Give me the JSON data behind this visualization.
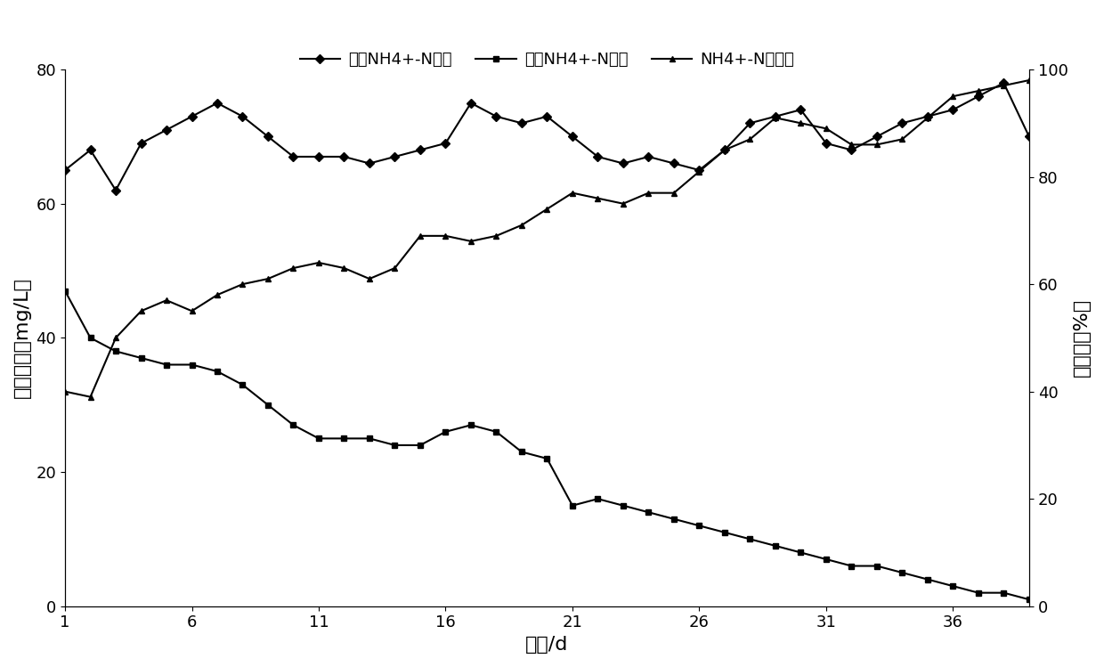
{
  "title": "",
  "xlabel": "时间/d",
  "ylabel_left": "氨氮浓度（mg/L）",
  "ylabel_right": "去除率（%）",
  "legend1": "进水NH4+-N浓度",
  "legend2": "出水NH4+-N浓度",
  "legend3": "NH4+-N去除率",
  "xlim": [
    1,
    39
  ],
  "ylim_left": [
    0,
    80
  ],
  "ylim_right": [
    0,
    100
  ],
  "xticks": [
    1,
    6,
    11,
    16,
    21,
    26,
    31,
    36
  ],
  "yticks_left": [
    0,
    20,
    40,
    60,
    80
  ],
  "yticks_right": [
    0,
    20,
    40,
    60,
    80,
    100
  ],
  "series1_x": [
    1,
    2,
    3,
    4,
    5,
    6,
    7,
    8,
    9,
    10,
    11,
    12,
    13,
    14,
    15,
    16,
    17,
    18,
    19,
    20,
    21,
    22,
    23,
    24,
    25,
    26,
    27,
    28,
    29,
    30,
    31,
    32,
    33,
    34,
    35,
    36,
    37,
    38,
    39
  ],
  "series1_y": [
    65,
    68,
    62,
    69,
    71,
    73,
    75,
    73,
    70,
    67,
    67,
    67,
    66,
    67,
    68,
    69,
    75,
    73,
    72,
    73,
    70,
    67,
    66,
    67,
    66,
    65,
    68,
    72,
    73,
    74,
    69,
    68,
    70,
    72,
    73,
    74,
    76,
    78,
    70
  ],
  "series2_x": [
    1,
    2,
    3,
    4,
    5,
    6,
    7,
    8,
    9,
    10,
    11,
    12,
    13,
    14,
    15,
    16,
    17,
    18,
    19,
    20,
    21,
    22,
    23,
    24,
    25,
    26,
    27,
    28,
    29,
    30,
    31,
    32,
    33,
    34,
    35,
    36,
    37,
    38,
    39
  ],
  "series2_y": [
    47,
    40,
    38,
    37,
    36,
    36,
    35,
    33,
    30,
    27,
    25,
    25,
    25,
    24,
    24,
    26,
    27,
    26,
    23,
    22,
    15,
    16,
    15,
    14,
    13,
    12,
    11,
    10,
    9,
    8,
    7,
    6,
    6,
    5,
    4,
    3,
    2,
    2,
    1
  ],
  "series3_x": [
    1,
    2,
    3,
    4,
    5,
    6,
    7,
    8,
    9,
    10,
    11,
    12,
    13,
    14,
    15,
    16,
    17,
    18,
    19,
    20,
    21,
    22,
    23,
    24,
    25,
    26,
    27,
    28,
    29,
    30,
    31,
    32,
    33,
    34,
    35,
    36,
    37,
    38,
    39
  ],
  "series3_y": [
    40,
    39,
    50,
    55,
    57,
    55,
    58,
    60,
    61,
    63,
    64,
    63,
    61,
    63,
    69,
    69,
    68,
    69,
    71,
    74,
    77,
    76,
    75,
    77,
    77,
    81,
    85,
    87,
    91,
    90,
    89,
    86,
    86,
    87,
    91,
    95,
    96,
    97,
    98
  ],
  "line_color": "#000000",
  "marker1": "D",
  "marker2": "s",
  "marker3": "^",
  "markersize": 5,
  "linewidth": 1.5,
  "background_color": "#ffffff",
  "font_size_label": 16,
  "font_size_tick": 13,
  "font_size_legend": 13
}
